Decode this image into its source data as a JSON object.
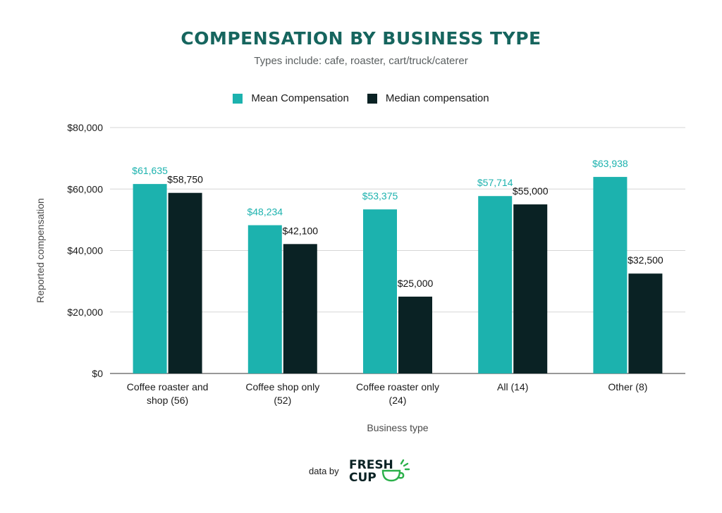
{
  "chart_data": {
    "type": "bar",
    "title": "COMPENSATION BY BUSINESS TYPE",
    "subtitle": "Types include: cafe, roaster, cart/truck/caterer",
    "xlabel": "Business type",
    "ylabel": "Reported compensation",
    "ylim": [
      0,
      80000
    ],
    "yticks": [
      0,
      20000,
      40000,
      60000,
      80000
    ],
    "ytick_labels": [
      "$0",
      "$20,000",
      "$40,000",
      "$60,000",
      "$80,000"
    ],
    "grid": true,
    "legend_position": "top-center",
    "categories": [
      [
        "Coffee roaster and",
        "shop (56)"
      ],
      [
        "Coffee shop only",
        "(52)"
      ],
      [
        "Coffee roaster only",
        "(24)"
      ],
      [
        "All (14)"
      ],
      [
        "Other (8)"
      ]
    ],
    "series": [
      {
        "name": "Mean Compensation",
        "color": "#1cb2ae",
        "label_color": "#1cb2ae",
        "values": [
          61635,
          48234,
          53375,
          57714,
          63938
        ],
        "labels": [
          "$61,635",
          "$48,234",
          "$53,375",
          "$57,714",
          "$63,938"
        ]
      },
      {
        "name": "Median compensation",
        "color": "#0a2224",
        "label_color": "#111111",
        "values": [
          58750,
          42100,
          25000,
          55000,
          32500
        ],
        "labels": [
          "$58,750",
          "$42,100",
          "$25,000",
          "$55,000",
          "$32,500"
        ]
      }
    ]
  },
  "footer": {
    "data_by": "data by",
    "logo_line1": "FRESH",
    "logo_line2": "CUP"
  },
  "colors": {
    "title": "#16655e",
    "logo_accent": "#2bb04a"
  },
  "icons": [
    "cup-icon"
  ]
}
